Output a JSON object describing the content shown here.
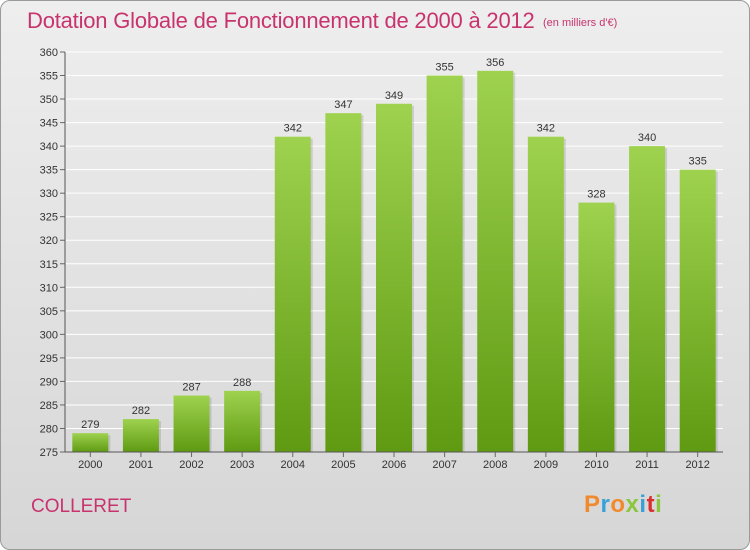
{
  "title": "Dotation Globale de Fonctionnement de 2000 à 2012",
  "subtitle": "(en milliers d'€)",
  "commune": "COLLERET",
  "logo": {
    "text": "Proxiti",
    "letter_colors": [
      "#f08a2c",
      "#3aa0d8",
      "#f08a2c",
      "#8cc63f",
      "#3aa0d8",
      "#d9302f",
      "#8cc63f"
    ]
  },
  "colors": {
    "title": "#c8336e",
    "bar_top": "#9ed24f",
    "bar_bottom": "#5f9a12",
    "grid": "#ffffff"
  },
  "chart_data": {
    "type": "bar",
    "title": "Dotation Globale de Fonctionnement de 2000 à 2012",
    "subtitle": "(en milliers d'€)",
    "categories": [
      "2000",
      "2001",
      "2002",
      "2003",
      "2004",
      "2005",
      "2006",
      "2007",
      "2008",
      "2009",
      "2010",
      "2011",
      "2012"
    ],
    "values": [
      279,
      282,
      287,
      288,
      342,
      347,
      349,
      355,
      356,
      342,
      328,
      340,
      335
    ],
    "ylim": [
      275,
      360
    ],
    "ytick_step": 5,
    "grid": true,
    "legend": "none",
    "data_labels": true
  }
}
